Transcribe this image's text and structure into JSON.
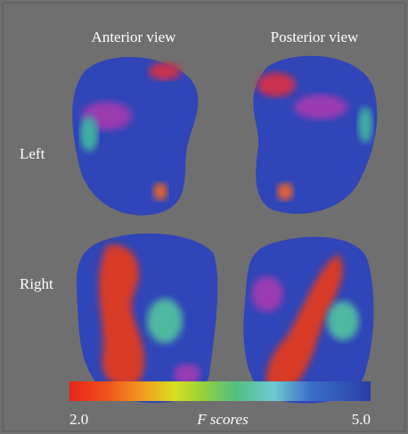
{
  "figure": {
    "column_labels": [
      "Anterior view",
      "Posterior view"
    ],
    "row_labels": [
      "Left",
      "Right"
    ],
    "colorbar": {
      "min_label": "2.0",
      "max_label": "5.0",
      "title": "F scores"
    }
  }
}
